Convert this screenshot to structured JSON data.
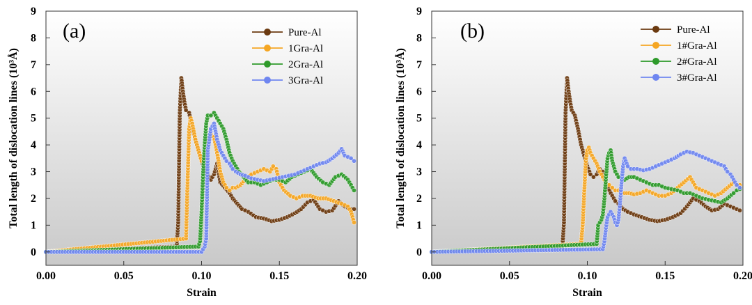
{
  "colors": {
    "Pure-Al": "#6b3a10",
    "1Gra-Al": "#f5a623",
    "2Gra-Al": "#2e9a2a",
    "3Gra-Al": "#6f86f0",
    "bg_top": "#ffffff",
    "bg_bottom": "#c9c9c9"
  },
  "chart_data": [
    {
      "type": "line",
      "panel_label": "(a)",
      "xlabel": "Strain",
      "ylabel": "Total length of dislocation lines (10³Å)",
      "xlim": [
        0.0,
        0.2
      ],
      "ylim": [
        -0.5,
        9
      ],
      "xticks": [
        "0.00",
        "0.05",
        "0.10",
        "0.15",
        "0.20"
      ],
      "yticks": [
        "0",
        "1",
        "2",
        "3",
        "4",
        "5",
        "6",
        "7",
        "8",
        "9"
      ],
      "legend_position": "top-right",
      "series": [
        {
          "name": "Pure-Al",
          "color_key": "Pure-Al",
          "x": [
            0.0,
            0.084,
            0.085,
            0.086,
            0.087,
            0.088,
            0.089,
            0.09,
            0.092,
            0.094,
            0.096,
            0.098,
            0.1,
            0.102,
            0.104,
            0.106,
            0.108,
            0.11,
            0.112,
            0.115,
            0.118,
            0.12,
            0.123,
            0.126,
            0.13,
            0.135,
            0.14,
            0.145,
            0.15,
            0.155,
            0.16,
            0.164,
            0.168,
            0.172,
            0.176,
            0.18,
            0.184,
            0.188,
            0.192,
            0.196,
            0.198
          ],
          "y": [
            0.0,
            0.2,
            1.1,
            5.2,
            6.5,
            6.0,
            5.6,
            5.3,
            5.2,
            4.6,
            4.2,
            3.8,
            3.4,
            3.1,
            2.9,
            2.7,
            2.9,
            3.3,
            2.6,
            2.4,
            2.2,
            2.0,
            1.8,
            1.6,
            1.5,
            1.3,
            1.25,
            1.15,
            1.2,
            1.3,
            1.45,
            1.6,
            1.85,
            1.95,
            1.6,
            1.5,
            1.55,
            1.9,
            1.7,
            1.6,
            1.6
          ]
        },
        {
          "name": "1Gra-Al",
          "color_key": "1Gra-Al",
          "x": [
            0.0,
            0.09,
            0.091,
            0.092,
            0.093,
            0.094,
            0.096,
            0.098,
            0.1,
            0.102,
            0.104,
            0.106,
            0.108,
            0.11,
            0.112,
            0.114,
            0.116,
            0.118,
            0.12,
            0.122,
            0.125,
            0.128,
            0.132,
            0.136,
            0.14,
            0.144,
            0.146,
            0.148,
            0.15,
            0.153,
            0.157,
            0.161,
            0.165,
            0.17,
            0.175,
            0.18,
            0.185,
            0.19,
            0.194,
            0.196,
            0.198
          ],
          "y": [
            0.0,
            0.5,
            2.6,
            4.6,
            5.0,
            4.8,
            4.2,
            3.8,
            3.4,
            3.5,
            4.1,
            4.4,
            4.3,
            3.7,
            3.0,
            2.6,
            2.4,
            2.3,
            2.4,
            2.4,
            2.5,
            2.7,
            2.9,
            3.0,
            3.1,
            3.0,
            3.2,
            3.1,
            2.6,
            2.3,
            2.1,
            2.0,
            2.1,
            2.1,
            2.0,
            2.0,
            1.9,
            1.8,
            1.7,
            1.5,
            1.1
          ]
        },
        {
          "name": "2Gra-Al",
          "color_key": "2Gra-Al",
          "x": [
            0.0,
            0.098,
            0.099,
            0.1,
            0.101,
            0.102,
            0.103,
            0.104,
            0.106,
            0.108,
            0.11,
            0.112,
            0.114,
            0.116,
            0.118,
            0.12,
            0.122,
            0.124,
            0.127,
            0.13,
            0.134,
            0.138,
            0.142,
            0.146,
            0.15,
            0.154,
            0.158,
            0.162,
            0.166,
            0.17,
            0.174,
            0.178,
            0.182,
            0.186,
            0.19,
            0.194,
            0.196,
            0.198
          ],
          "y": [
            0.0,
            0.2,
            0.4,
            1.5,
            2.9,
            4.0,
            4.8,
            5.1,
            5.1,
            5.2,
            5.0,
            4.8,
            4.6,
            4.2,
            3.7,
            3.4,
            3.2,
            3.0,
            2.8,
            2.6,
            2.6,
            2.5,
            2.6,
            2.7,
            2.7,
            2.6,
            2.8,
            2.9,
            3.0,
            3.1,
            2.8,
            2.6,
            2.5,
            2.8,
            2.9,
            2.7,
            2.5,
            2.3
          ]
        },
        {
          "name": "3Gra-Al",
          "color_key": "3Gra-Al",
          "x": [
            0.0,
            0.1,
            0.101,
            0.102,
            0.103,
            0.104,
            0.106,
            0.108,
            0.11,
            0.112,
            0.114,
            0.116,
            0.118,
            0.12,
            0.122,
            0.125,
            0.128,
            0.132,
            0.136,
            0.14,
            0.144,
            0.148,
            0.152,
            0.156,
            0.16,
            0.164,
            0.168,
            0.172,
            0.176,
            0.18,
            0.184,
            0.188,
            0.19,
            0.192,
            0.194,
            0.196,
            0.198
          ],
          "y": [
            0.0,
            0.0,
            0.1,
            0.2,
            0.5,
            3.8,
            4.6,
            4.8,
            4.2,
            3.8,
            3.6,
            3.4,
            3.3,
            3.1,
            3.0,
            2.9,
            2.85,
            2.75,
            2.7,
            2.65,
            2.7,
            2.75,
            2.8,
            2.85,
            2.9,
            3.0,
            3.1,
            3.2,
            3.3,
            3.35,
            3.5,
            3.7,
            3.85,
            3.6,
            3.55,
            3.5,
            3.4
          ]
        }
      ]
    },
    {
      "type": "line",
      "panel_label": "(b)",
      "xlabel": "Strain",
      "ylabel": "Total length of dislocation lines (10³Å)",
      "xlim": [
        0.0,
        0.2
      ],
      "ylim": [
        -0.5,
        9
      ],
      "xticks": [
        "0.00",
        "0.05",
        "0.10",
        "0.15",
        "0.20"
      ],
      "yticks": [
        "0",
        "1",
        "2",
        "3",
        "4",
        "5",
        "6",
        "7",
        "8",
        "9"
      ],
      "legend_position": "top-right",
      "series": [
        {
          "name": "Pure-Al",
          "color_key": "Pure-Al",
          "x": [
            0.0,
            0.084,
            0.085,
            0.086,
            0.087,
            0.088,
            0.089,
            0.09,
            0.092,
            0.094,
            0.096,
            0.098,
            0.1,
            0.102,
            0.104,
            0.106,
            0.108,
            0.11,
            0.112,
            0.115,
            0.118,
            0.12,
            0.123,
            0.126,
            0.13,
            0.135,
            0.14,
            0.145,
            0.15,
            0.155,
            0.16,
            0.164,
            0.168,
            0.172,
            0.176,
            0.18,
            0.184,
            0.188,
            0.192,
            0.196,
            0.198
          ],
          "y": [
            0.0,
            0.2,
            1.1,
            5.2,
            6.5,
            6.0,
            5.6,
            5.3,
            5.1,
            4.6,
            4.0,
            3.6,
            3.2,
            2.9,
            2.8,
            2.9,
            3.1,
            3.0,
            2.6,
            2.2,
            1.9,
            1.8,
            1.6,
            1.5,
            1.4,
            1.3,
            1.2,
            1.15,
            1.2,
            1.3,
            1.45,
            1.7,
            2.0,
            1.9,
            1.7,
            1.55,
            1.6,
            1.8,
            1.7,
            1.6,
            1.55
          ]
        },
        {
          "name": "1#Gra-Al",
          "color_key": "1Gra-Al",
          "x": [
            0.0,
            0.096,
            0.097,
            0.098,
            0.099,
            0.1,
            0.101,
            0.102,
            0.104,
            0.106,
            0.108,
            0.11,
            0.112,
            0.114,
            0.116,
            0.118,
            0.12,
            0.122,
            0.124,
            0.127,
            0.13,
            0.134,
            0.138,
            0.142,
            0.146,
            0.15,
            0.154,
            0.158,
            0.162,
            0.166,
            0.17,
            0.174,
            0.178,
            0.182,
            0.186,
            0.19,
            0.194,
            0.196,
            0.198
          ],
          "y": [
            0.0,
            0.3,
            1.0,
            2.2,
            3.4,
            3.8,
            3.9,
            3.7,
            3.5,
            3.3,
            3.0,
            2.8,
            2.6,
            2.5,
            2.4,
            2.3,
            2.3,
            2.2,
            2.2,
            2.2,
            2.15,
            2.2,
            2.3,
            2.2,
            2.1,
            2.1,
            2.2,
            2.4,
            2.6,
            2.8,
            2.4,
            2.3,
            2.2,
            2.1,
            2.2,
            2.4,
            2.6,
            2.5,
            2.5
          ]
        },
        {
          "name": "2#Gra-Al",
          "color_key": "2Gra-Al",
          "x": [
            0.0,
            0.106,
            0.107,
            0.108,
            0.109,
            0.11,
            0.111,
            0.112,
            0.113,
            0.114,
            0.115,
            0.116,
            0.118,
            0.12,
            0.122,
            0.124,
            0.127,
            0.13,
            0.134,
            0.138,
            0.142,
            0.146,
            0.15,
            0.154,
            0.158,
            0.162,
            0.166,
            0.17,
            0.174,
            0.178,
            0.182,
            0.186,
            0.19,
            0.194,
            0.196,
            0.198
          ],
          "y": [
            0.0,
            0.3,
            1.0,
            1.1,
            1.2,
            1.4,
            2.0,
            2.8,
            3.5,
            3.7,
            3.8,
            3.4,
            3.0,
            2.8,
            2.7,
            2.7,
            2.8,
            2.8,
            2.7,
            2.6,
            2.5,
            2.5,
            2.4,
            2.35,
            2.3,
            2.2,
            2.2,
            2.1,
            2.0,
            1.95,
            1.9,
            1.85,
            2.0,
            2.2,
            2.3,
            2.35
          ]
        },
        {
          "name": "3#Gra-Al",
          "color_key": "3Gra-Al",
          "x": [
            0.0,
            0.11,
            0.111,
            0.112,
            0.113,
            0.114,
            0.115,
            0.116,
            0.117,
            0.118,
            0.119,
            0.12,
            0.121,
            0.122,
            0.123,
            0.124,
            0.126,
            0.128,
            0.132,
            0.136,
            0.14,
            0.144,
            0.148,
            0.152,
            0.156,
            0.16,
            0.164,
            0.168,
            0.172,
            0.176,
            0.18,
            0.184,
            0.188,
            0.19,
            0.192,
            0.194,
            0.196,
            0.198
          ],
          "y": [
            0.0,
            0.1,
            0.4,
            0.9,
            1.3,
            1.4,
            1.5,
            1.4,
            1.3,
            1.1,
            1.0,
            1.2,
            1.8,
            2.6,
            3.2,
            3.5,
            3.2,
            3.1,
            3.1,
            3.05,
            3.1,
            3.2,
            3.3,
            3.4,
            3.5,
            3.65,
            3.75,
            3.7,
            3.6,
            3.5,
            3.4,
            3.3,
            3.2,
            3.0,
            2.9,
            2.7,
            2.5,
            2.4
          ]
        }
      ]
    }
  ]
}
